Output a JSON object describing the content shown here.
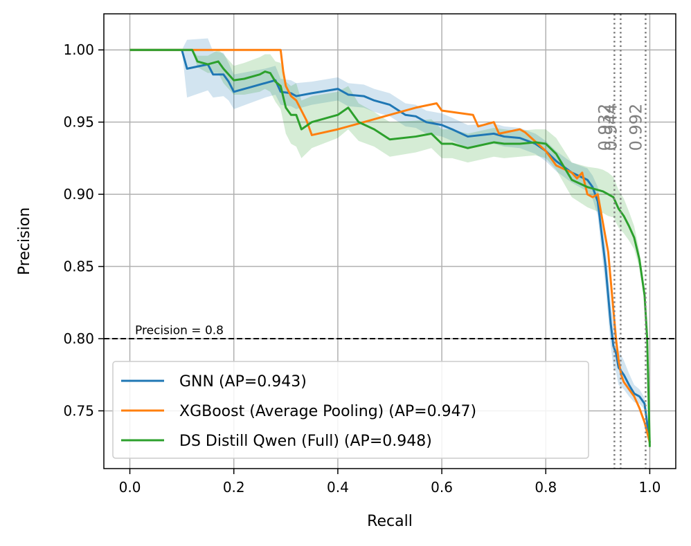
{
  "chart_data": {
    "type": "line",
    "title": "",
    "xlabel": "Recall",
    "ylabel": "Precision",
    "xlim": [
      -0.05,
      1.05
    ],
    "ylim": [
      0.71,
      1.025
    ],
    "xticks": [
      {
        "v": 0.0,
        "label": "0.0"
      },
      {
        "v": 0.2,
        "label": "0.2"
      },
      {
        "v": 0.4,
        "label": "0.4"
      },
      {
        "v": 0.6,
        "label": "0.6"
      },
      {
        "v": 0.8,
        "label": "0.8"
      },
      {
        "v": 1.0,
        "label": "1.0"
      }
    ],
    "yticks": [
      {
        "v": 0.75,
        "label": "0.75"
      },
      {
        "v": 0.8,
        "label": "0.80"
      },
      {
        "v": 0.85,
        "label": "0.85"
      },
      {
        "v": 0.9,
        "label": "0.90"
      },
      {
        "v": 0.95,
        "label": "0.95"
      },
      {
        "v": 1.0,
        "label": "1.00"
      }
    ],
    "grid": true,
    "hline": {
      "y": 0.8,
      "label": "Precision = 0.8",
      "label_x": 0.01,
      "label_y": 0.803
    },
    "vlines": [
      {
        "x": 0.932,
        "label": "0.932"
      },
      {
        "x": 0.944,
        "label": "0.944"
      },
      {
        "x": 0.992,
        "label": "0.992"
      }
    ],
    "vline_label_y": 0.93,
    "legend_position": "lower-left",
    "series": [
      {
        "name": "GNN (AP=0.943)",
        "color": "#1f77b4",
        "x": [
          0,
          0.1,
          0.11,
          0.15,
          0.16,
          0.18,
          0.19,
          0.2,
          0.23,
          0.26,
          0.28,
          0.29,
          0.31,
          0.32,
          0.35,
          0.4,
          0.42,
          0.45,
          0.47,
          0.5,
          0.53,
          0.55,
          0.57,
          0.6,
          0.62,
          0.65,
          0.7,
          0.72,
          0.75,
          0.78,
          0.8,
          0.82,
          0.85,
          0.88,
          0.89,
          0.9,
          0.905,
          0.91,
          0.915,
          0.92,
          0.925,
          0.93,
          0.935,
          0.94,
          0.95,
          0.96,
          0.97,
          0.98,
          0.99,
          1.0
        ],
        "y": [
          1.0,
          1.0,
          0.987,
          0.99,
          0.983,
          0.983,
          0.978,
          0.971,
          0.974,
          0.977,
          0.979,
          0.971,
          0.97,
          0.968,
          0.97,
          0.973,
          0.969,
          0.968,
          0.965,
          0.962,
          0.955,
          0.954,
          0.95,
          0.948,
          0.945,
          0.94,
          0.942,
          0.94,
          0.939,
          0.935,
          0.93,
          0.923,
          0.915,
          0.91,
          0.905,
          0.895,
          0.88,
          0.865,
          0.85,
          0.83,
          0.81,
          0.795,
          0.79,
          0.78,
          0.775,
          0.768,
          0.762,
          0.76,
          0.755,
          0.728
        ],
        "band_half_width": [
          0,
          0,
          0.02,
          0.018,
          0.016,
          0.015,
          0.013,
          0.012,
          0.011,
          0.01,
          0.01,
          0.009,
          0.009,
          0.009,
          0.008,
          0.008,
          0.008,
          0.008,
          0.008,
          0.008,
          0.008,
          0.008,
          0.008,
          0.008,
          0.008,
          0.008,
          0.007,
          0.007,
          0.007,
          0.007,
          0.007,
          0.007,
          0.007,
          0.008,
          0.008,
          0.01,
          0.012,
          0.013,
          0.014,
          0.015,
          0.015,
          0.015,
          0.013,
          0.012,
          0.01,
          0.008,
          0.006,
          0.005,
          0.004,
          0
        ]
      },
      {
        "name": "XGBoost (Average Pooling) (AP=0.947)",
        "color": "#ff7f0e",
        "x": [
          0,
          0.29,
          0.295,
          0.3,
          0.31,
          0.32,
          0.33,
          0.34,
          0.35,
          0.4,
          0.45,
          0.5,
          0.55,
          0.59,
          0.6,
          0.66,
          0.67,
          0.7,
          0.71,
          0.75,
          0.76,
          0.8,
          0.82,
          0.85,
          0.86,
          0.87,
          0.88,
          0.89,
          0.9,
          0.91,
          0.92,
          0.925,
          0.93,
          0.935,
          0.94,
          0.945,
          0.95,
          0.96,
          0.97,
          0.98,
          0.99,
          1.0
        ],
        "y": [
          1.0,
          1.0,
          0.985,
          0.975,
          0.968,
          0.965,
          0.958,
          0.951,
          0.941,
          0.945,
          0.95,
          0.955,
          0.96,
          0.963,
          0.958,
          0.955,
          0.947,
          0.95,
          0.942,
          0.945,
          0.943,
          0.93,
          0.92,
          0.915,
          0.911,
          0.915,
          0.9,
          0.898,
          0.9,
          0.88,
          0.86,
          0.84,
          0.82,
          0.8,
          0.785,
          0.775,
          0.77,
          0.765,
          0.76,
          0.752,
          0.742,
          0.728
        ],
        "band_half_width": [
          0
        ]
      },
      {
        "name": "DS Distill Qwen (Full) (AP=0.948)",
        "color": "#2ca02c",
        "x": [
          0,
          0.12,
          0.13,
          0.15,
          0.17,
          0.18,
          0.2,
          0.22,
          0.25,
          0.26,
          0.27,
          0.28,
          0.29,
          0.3,
          0.31,
          0.32,
          0.33,
          0.35,
          0.4,
          0.42,
          0.44,
          0.47,
          0.5,
          0.55,
          0.58,
          0.6,
          0.62,
          0.65,
          0.7,
          0.72,
          0.75,
          0.78,
          0.8,
          0.82,
          0.85,
          0.88,
          0.9,
          0.91,
          0.92,
          0.93,
          0.94,
          0.95,
          0.96,
          0.97,
          0.98,
          0.99,
          0.995,
          1.0
        ],
        "y": [
          1.0,
          1.0,
          0.992,
          0.99,
          0.992,
          0.987,
          0.979,
          0.98,
          0.983,
          0.985,
          0.984,
          0.978,
          0.975,
          0.96,
          0.955,
          0.955,
          0.945,
          0.95,
          0.955,
          0.96,
          0.95,
          0.945,
          0.938,
          0.94,
          0.942,
          0.935,
          0.935,
          0.932,
          0.936,
          0.935,
          0.935,
          0.936,
          0.935,
          0.928,
          0.91,
          0.905,
          0.903,
          0.902,
          0.9,
          0.898,
          0.89,
          0.885,
          0.878,
          0.87,
          0.855,
          0.83,
          0.8,
          0.725
        ],
        "band_half_width": [
          0,
          0,
          0.004,
          0.006,
          0.008,
          0.01,
          0.01,
          0.011,
          0.012,
          0.012,
          0.013,
          0.014,
          0.016,
          0.018,
          0.02,
          0.022,
          0.02,
          0.018,
          0.016,
          0.015,
          0.013,
          0.012,
          0.012,
          0.011,
          0.01,
          0.01,
          0.01,
          0.01,
          0.01,
          0.01,
          0.009,
          0.009,
          0.01,
          0.011,
          0.012,
          0.014,
          0.015,
          0.015,
          0.015,
          0.014,
          0.013,
          0.012,
          0.01,
          0.008,
          0.006,
          0.004,
          0.002,
          0
        ]
      }
    ]
  }
}
